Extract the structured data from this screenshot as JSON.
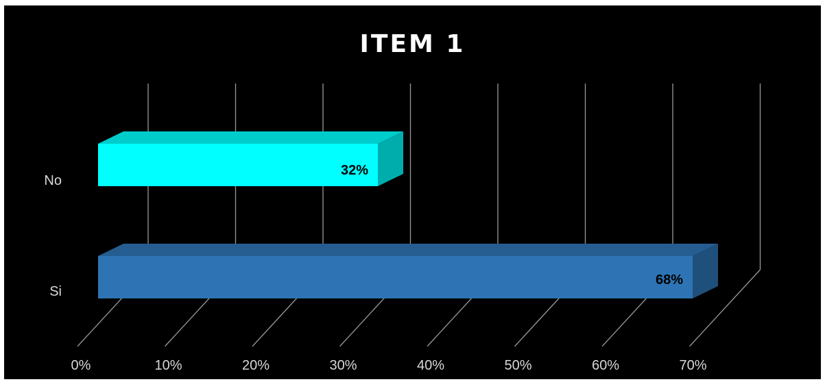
{
  "chart_data": {
    "type": "bar",
    "orientation": "horizontal",
    "title": "ITEM 1",
    "categories": [
      "Si",
      "No"
    ],
    "values": [
      68,
      32
    ],
    "value_labels": [
      "68%",
      "32%"
    ],
    "bar_colors": [
      "#2e74b5",
      "#00ffff"
    ],
    "x_ticks": [
      "0%",
      "10%",
      "20%",
      "30%",
      "40%",
      "50%",
      "60%",
      "70%"
    ],
    "xlim": [
      0,
      70
    ],
    "grid": true,
    "legend": "none",
    "background": "#000000",
    "style": "3d"
  }
}
